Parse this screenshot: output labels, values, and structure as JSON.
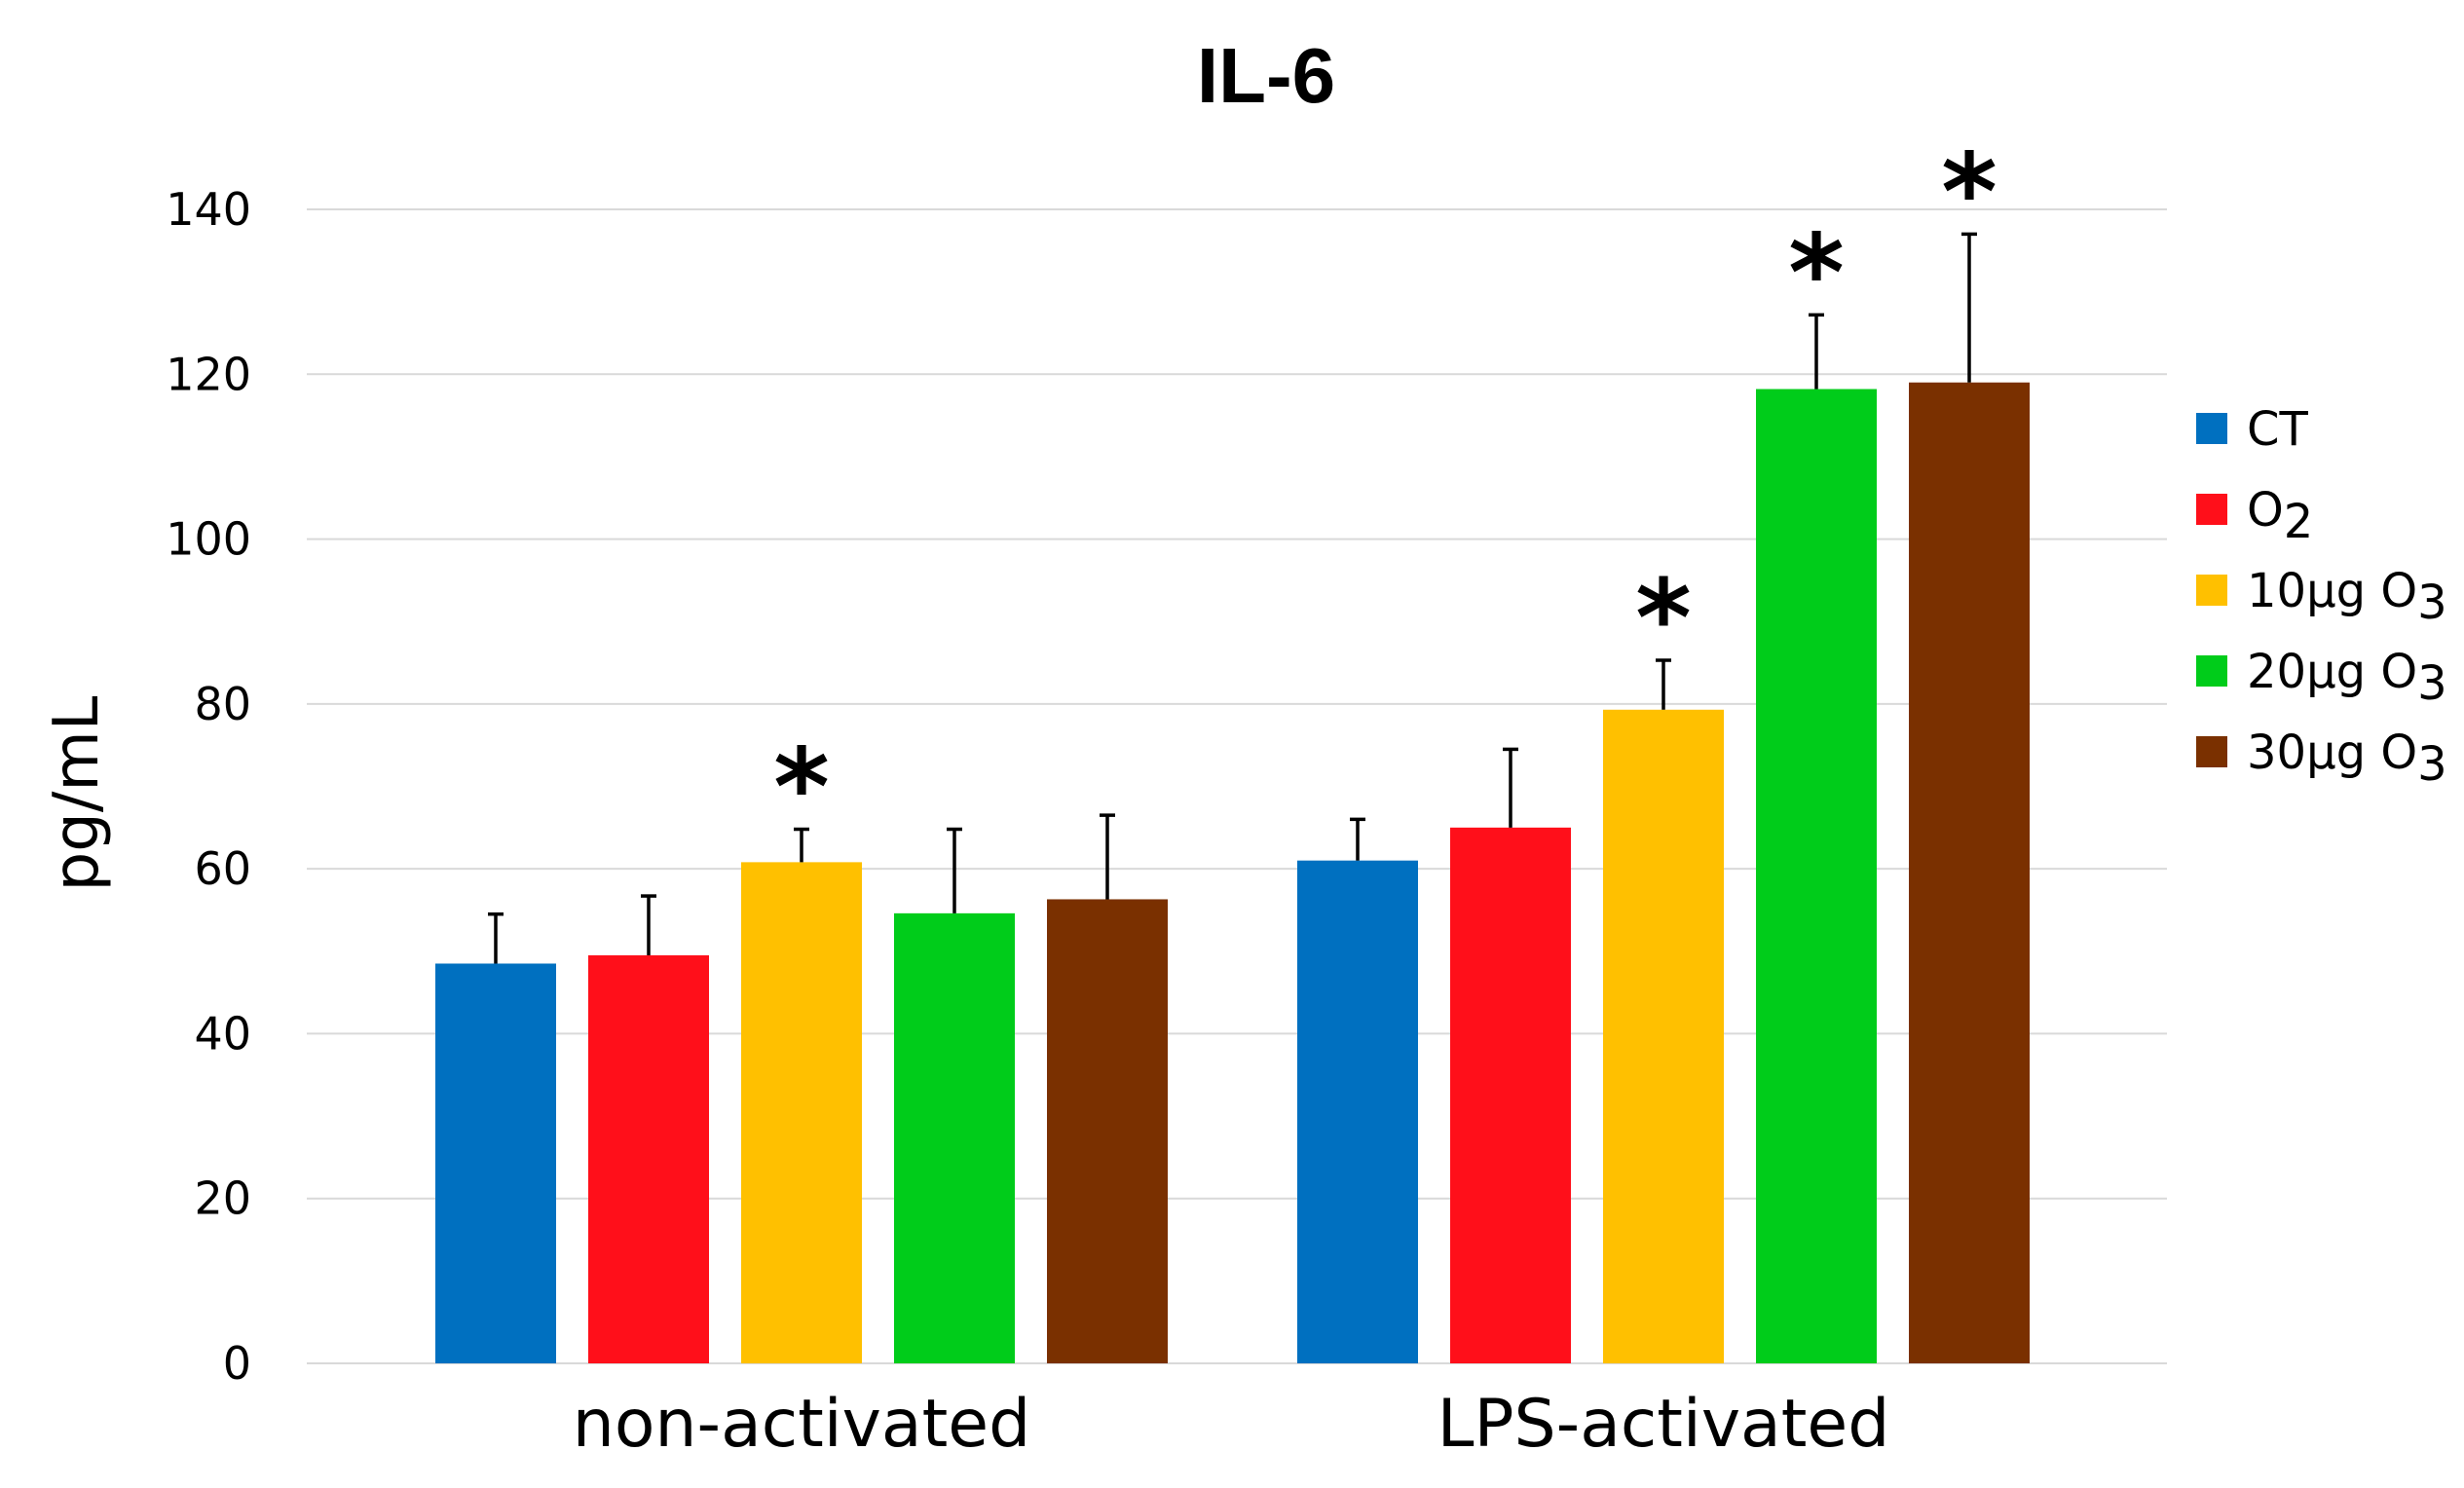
{
  "chart_data": {
    "type": "bar",
    "title": "IL-6",
    "xlabel": "",
    "ylabel": "pg/mL",
    "ylim": [
      0,
      140
    ],
    "yticks": [
      0,
      20,
      40,
      60,
      80,
      100,
      120,
      140
    ],
    "grid": true,
    "legend_position": "right",
    "categories": [
      "non-activated",
      "LPS-activated"
    ],
    "series": [
      {
        "name": "CT",
        "name_main": "CT",
        "name_sub": "",
        "color": "#0070C0",
        "values": [
          48.5,
          61
        ],
        "errors": [
          6,
          5
        ],
        "significant": [
          false,
          false
        ]
      },
      {
        "name": "O2",
        "name_main": "O",
        "name_sub": "2",
        "color": "#FF0F1A",
        "values": [
          49.5,
          65
        ],
        "errors": [
          7.2,
          9.5
        ],
        "significant": [
          false,
          false
        ]
      },
      {
        "name": "10µg O3",
        "name_main": "10µg O",
        "name_sub": "3",
        "color": "#FFC000",
        "values": [
          60.8,
          79.3
        ],
        "errors": [
          4,
          6
        ],
        "significant": [
          true,
          true
        ]
      },
      {
        "name": "20µg O3",
        "name_main": "20µg O",
        "name_sub": "3",
        "color": "#00CC1A",
        "values": [
          54.6,
          118.2
        ],
        "errors": [
          10.2,
          9
        ],
        "significant": [
          false,
          true
        ]
      },
      {
        "name": "30µg O3",
        "name_main": "30µg O",
        "name_sub": "3",
        "color": "#7A3000",
        "values": [
          56.3,
          119
        ],
        "errors": [
          10.2,
          18
        ],
        "significant": [
          false,
          true
        ]
      }
    ],
    "significance_marker": "*"
  }
}
